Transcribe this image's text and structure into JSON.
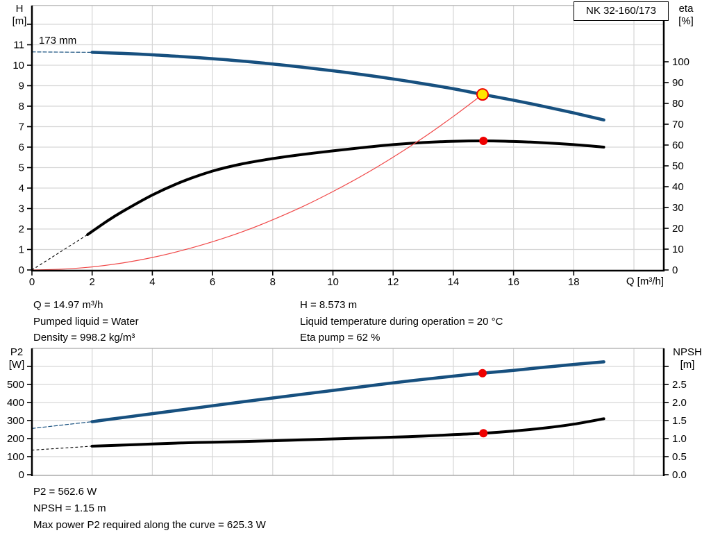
{
  "title_box": {
    "label": "NK 32-160/173"
  },
  "colors": {
    "curve_blue": "#17507f",
    "curve_black": "#000000",
    "system_red": "#f04848",
    "marker_red": "#ee0000",
    "marker_yellow": "#ffe600",
    "grid": "#d6d6d6",
    "frame": "#aaaaaa"
  },
  "annotations": {
    "top_left": [
      "Q = 14.97 m³/h",
      "Pumped liquid = Water",
      "Density = 998.2 kg/m³"
    ],
    "top_right": [
      "H = 8.573 m",
      "Liquid temperature during operation = 20 °C",
      "Eta pump = 62 %"
    ],
    "bottom": [
      "P2 = 562.6 W",
      "NPSH = 1.15 m",
      "Max power P2 required along the curve = 625.3 W"
    ]
  },
  "chart_data": [
    {
      "name": "qh-eta-chart",
      "type": "line",
      "curve_label": "173 mm",
      "x_axis": {
        "label": "Q [m³/h]",
        "min": 0,
        "max": 21,
        "grid": [
          2,
          4,
          6,
          8,
          10,
          12,
          14,
          16,
          18,
          20
        ],
        "ticks": [
          {
            "v": 0,
            "t": "0"
          },
          {
            "v": 2,
            "t": "2"
          },
          {
            "v": 4,
            "t": "4"
          },
          {
            "v": 6,
            "t": "6"
          },
          {
            "v": 8,
            "t": "8"
          },
          {
            "v": 10,
            "t": "10"
          },
          {
            "v": 12,
            "t": "12"
          },
          {
            "v": 14,
            "t": "14"
          },
          {
            "v": 16,
            "t": "16"
          },
          {
            "v": 18,
            "t": "18"
          }
        ]
      },
      "left_axis": {
        "label": "H [m]",
        "label_lines": [
          "H",
          "[m]"
        ],
        "min": 0,
        "max": 12.9,
        "grid": [
          1,
          2,
          3,
          4,
          5,
          6,
          7,
          8,
          9,
          10,
          11,
          12
        ],
        "ticks": [
          {
            "v": 0,
            "t": "0"
          },
          {
            "v": 1,
            "t": "1"
          },
          {
            "v": 2,
            "t": "2"
          },
          {
            "v": 3,
            "t": "3"
          },
          {
            "v": 4,
            "t": "4"
          },
          {
            "v": 5,
            "t": "5"
          },
          {
            "v": 6,
            "t": "6"
          },
          {
            "v": 7,
            "t": "7"
          },
          {
            "v": 8,
            "t": "8"
          },
          {
            "v": 9,
            "t": "9"
          },
          {
            "v": 10,
            "t": "10"
          },
          {
            "v": 11,
            "t": "11"
          },
          {
            "v": 12,
            "t": ""
          }
        ]
      },
      "right_axis": {
        "label": "eta [%]",
        "label_lines": [
          "eta",
          "[%]"
        ],
        "min": 0,
        "max": 127,
        "ticks": [
          {
            "v": 0,
            "t": "0"
          },
          {
            "v": 10,
            "t": "10"
          },
          {
            "v": 20,
            "t": "20"
          },
          {
            "v": 30,
            "t": "30"
          },
          {
            "v": 40,
            "t": "40"
          },
          {
            "v": 50,
            "t": "50"
          },
          {
            "v": 60,
            "t": "60"
          },
          {
            "v": 70,
            "t": "70"
          },
          {
            "v": 80,
            "t": "80"
          },
          {
            "v": 90,
            "t": "90"
          },
          {
            "v": 100,
            "t": "100"
          }
        ]
      },
      "series": [
        {
          "name": "head-curve-dashed",
          "axis": "left",
          "color": "curve_blue",
          "width": 1.2,
          "dash": "5 3",
          "smooth": false,
          "points": [
            [
              0,
              10.65
            ],
            [
              2,
              10.63
            ]
          ]
        },
        {
          "name": "eta-curve-dashed",
          "axis": "right",
          "color": "curve_black",
          "width": 1.1,
          "dash": "3 4",
          "smooth": false,
          "points": [
            [
              0,
              0
            ],
            [
              1.85,
              17
            ]
          ]
        },
        {
          "name": "eta-curve",
          "axis": "right",
          "color": "curve_black",
          "width": 4,
          "dash": null,
          "smooth": true,
          "points": [
            [
              1.85,
              17
            ],
            [
              2.5,
              23.5
            ],
            [
              3,
              28
            ],
            [
              4,
              36
            ],
            [
              5,
              42.5
            ],
            [
              6,
              47.5
            ],
            [
              7,
              51
            ],
            [
              8,
              53.5
            ],
            [
              9,
              55.5
            ],
            [
              10,
              57.2
            ],
            [
              11,
              58.8
            ],
            [
              12,
              60.2
            ],
            [
              13,
              61.2
            ],
            [
              14,
              61.8
            ],
            [
              15,
              62
            ],
            [
              16,
              61.7
            ],
            [
              17,
              61.1
            ],
            [
              18,
              60.2
            ],
            [
              19,
              59
            ]
          ]
        },
        {
          "name": "system-curve",
          "axis": "left",
          "color": "system_red",
          "width": 1.2,
          "dash": null,
          "smooth": true,
          "points": [
            [
              0,
              0
            ],
            [
              1,
              0.04
            ],
            [
              2,
              0.15
            ],
            [
              3,
              0.34
            ],
            [
              4,
              0.61
            ],
            [
              5,
              0.96
            ],
            [
              6,
              1.38
            ],
            [
              7,
              1.87
            ],
            [
              8,
              2.45
            ],
            [
              9,
              3.1
            ],
            [
              10,
              3.83
            ],
            [
              11,
              4.63
            ],
            [
              12,
              5.51
            ],
            [
              13,
              6.46
            ],
            [
              14,
              7.5
            ],
            [
              14.97,
              8.573
            ]
          ]
        },
        {
          "name": "head-curve",
          "axis": "left",
          "color": "curve_blue",
          "width": 4.5,
          "dash": null,
          "smooth": true,
          "points": [
            [
              2,
              10.63
            ],
            [
              3,
              10.58
            ],
            [
              4,
              10.51
            ],
            [
              5,
              10.42
            ],
            [
              6,
              10.32
            ],
            [
              7,
              10.2
            ],
            [
              8,
              10.06
            ],
            [
              9,
              9.9
            ],
            [
              10,
              9.73
            ],
            [
              11,
              9.54
            ],
            [
              12,
              9.33
            ],
            [
              13,
              9.1
            ],
            [
              14,
              8.85
            ],
            [
              14.97,
              8.573
            ],
            [
              16,
              8.29
            ],
            [
              17,
              7.99
            ],
            [
              18,
              7.67
            ],
            [
              19,
              7.33
            ]
          ]
        }
      ],
      "markers": [
        {
          "name": "duty-point-marker",
          "x": 14.97,
          "y": 8.573,
          "axis": "left",
          "r": 8,
          "fill": "marker_yellow",
          "stroke": "marker_red",
          "sw": 2
        },
        {
          "name": "eta-point-marker",
          "x": 15,
          "y": 62,
          "axis": "right",
          "r": 6,
          "fill": "marker_red",
          "stroke": null,
          "sw": 0
        }
      ]
    },
    {
      "name": "p2-npsh-chart",
      "type": "line",
      "x_axis": {
        "label": "",
        "min": 0,
        "max": 21,
        "grid": [
          2,
          4,
          6,
          8,
          10,
          12,
          14,
          16,
          18,
          20
        ],
        "ticks": []
      },
      "left_axis": {
        "label": "P2 [W]",
        "label_lines": [
          "P2",
          "[W]"
        ],
        "min": 0,
        "max": 700,
        "grid": [
          100,
          200,
          300,
          400,
          500,
          600
        ],
        "ticks": [
          {
            "v": 0,
            "t": "0"
          },
          {
            "v": 100,
            "t": "100"
          },
          {
            "v": 200,
            "t": "200"
          },
          {
            "v": 300,
            "t": "300"
          },
          {
            "v": 400,
            "t": "400"
          },
          {
            "v": 500,
            "t": "500"
          },
          {
            "v": 600,
            "t": ""
          }
        ]
      },
      "right_axis": {
        "label": "NPSH [m]",
        "label_lines": [
          "NPSH",
          "[m]"
        ],
        "min": 0,
        "max": 3.5,
        "ticks": [
          {
            "v": 0,
            "t": "0.0"
          },
          {
            "v": 0.5,
            "t": "0.5"
          },
          {
            "v": 1,
            "t": "1.0"
          },
          {
            "v": 1.5,
            "t": "1.5"
          },
          {
            "v": 2,
            "t": "2.0"
          },
          {
            "v": 2.5,
            "t": "2.5"
          },
          {
            "v": 3,
            "t": ""
          }
        ]
      },
      "series": [
        {
          "name": "p2-curve-dashed",
          "axis": "left",
          "color": "curve_blue",
          "width": 1.2,
          "dash": "5 3",
          "smooth": false,
          "points": [
            [
              0,
              256
            ],
            [
              2,
              294
            ]
          ]
        },
        {
          "name": "npsh-curve-dashed",
          "axis": "right",
          "color": "curve_black",
          "width": 1.1,
          "dash": "3 4",
          "smooth": false,
          "points": [
            [
              0,
              0.68
            ],
            [
              2,
              0.79
            ]
          ]
        },
        {
          "name": "p2-curve",
          "axis": "left",
          "color": "curve_blue",
          "width": 4.5,
          "dash": null,
          "smooth": true,
          "points": [
            [
              2,
              294
            ],
            [
              3,
              316
            ],
            [
              4,
              338
            ],
            [
              5,
              360
            ],
            [
              6,
              382
            ],
            [
              7,
              404
            ],
            [
              8,
              425
            ],
            [
              9,
              446
            ],
            [
              10,
              467
            ],
            [
              11,
              488
            ],
            [
              12,
              509
            ],
            [
              13,
              528
            ],
            [
              14,
              546
            ],
            [
              14.97,
              562.6
            ],
            [
              16,
              578
            ],
            [
              17,
              595
            ],
            [
              18,
              611
            ],
            [
              19,
              625.3
            ]
          ]
        },
        {
          "name": "npsh-curve",
          "axis": "right",
          "color": "curve_black",
          "width": 4,
          "dash": null,
          "smooth": true,
          "points": [
            [
              2,
              0.79
            ],
            [
              3,
              0.82
            ],
            [
              4,
              0.85
            ],
            [
              5,
              0.88
            ],
            [
              6,
              0.9
            ],
            [
              7,
              0.92
            ],
            [
              8,
              0.94
            ],
            [
              9,
              0.965
            ],
            [
              10,
              0.99
            ],
            [
              11,
              1.015
            ],
            [
              12,
              1.04
            ],
            [
              13,
              1.07
            ],
            [
              14,
              1.11
            ],
            [
              15,
              1.15
            ],
            [
              16,
              1.21
            ],
            [
              17,
              1.29
            ],
            [
              18,
              1.4
            ],
            [
              19,
              1.55
            ]
          ]
        }
      ],
      "markers": [
        {
          "name": "p2-point-marker",
          "x": 14.97,
          "y": 562.6,
          "axis": "left",
          "r": 6,
          "fill": "marker_red",
          "stroke": null,
          "sw": 0
        },
        {
          "name": "npsh-point-marker",
          "x": 15,
          "y": 1.15,
          "axis": "right",
          "r": 6,
          "fill": "marker_red",
          "stroke": null,
          "sw": 0
        }
      ]
    }
  ]
}
